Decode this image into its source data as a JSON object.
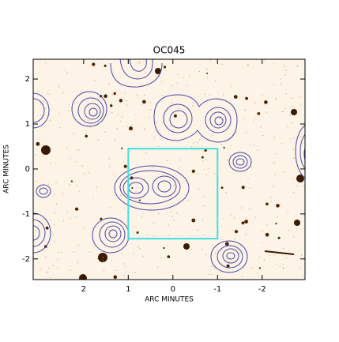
{
  "chart_data": {
    "type": "image",
    "title": "OC045",
    "xlabel": "ARC MINUTES",
    "ylabel": "ARC MINUTES",
    "xlim": [
      3.13,
      -2.96
    ],
    "ylim": [
      -2.46,
      2.44
    ],
    "xticks": [
      2,
      1,
      0,
      -1,
      -2
    ],
    "yticks": [
      -2,
      -1,
      0,
      1,
      2
    ],
    "box": {
      "x": [
        1,
        -1
      ],
      "y": [
        -1.55,
        0.45
      ],
      "color": "#3fe0e0"
    },
    "contour_color": "#4a4aa8"
  }
}
